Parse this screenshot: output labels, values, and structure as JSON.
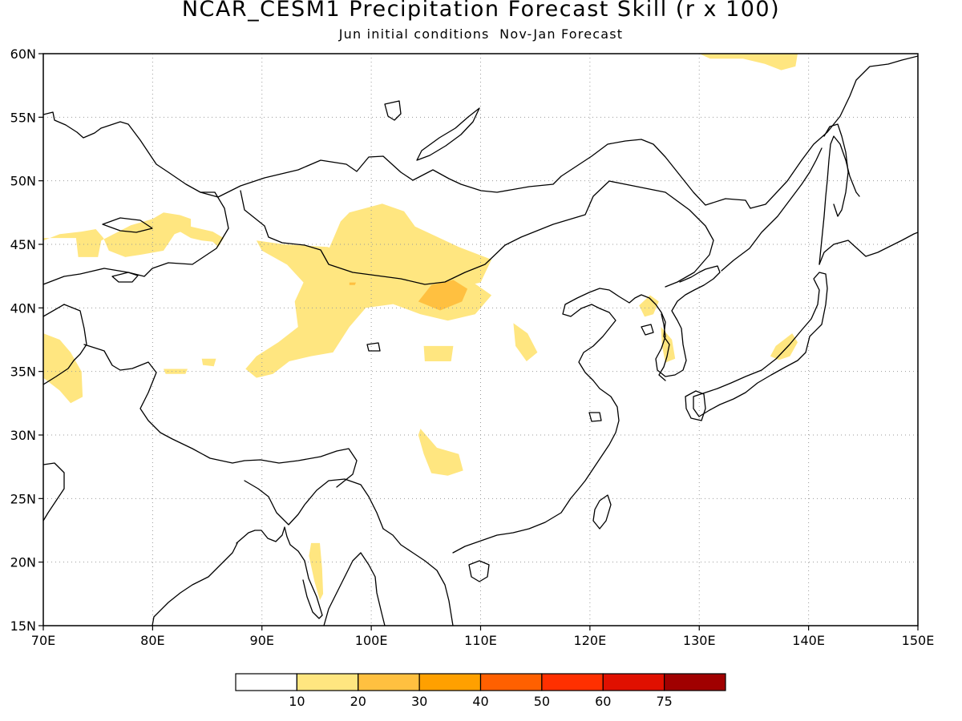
{
  "title": "NCAR_CESM1 Precipitation Forecast Skill (r x 100)",
  "subtitle": "Jun initial conditions  Nov-Jan Forecast",
  "map": {
    "lon_range": [
      70,
      150
    ],
    "lat_range": [
      15,
      60
    ],
    "lon_ticks": [
      {
        "value": 70,
        "label": "70E"
      },
      {
        "value": 80,
        "label": "80E"
      },
      {
        "value": 90,
        "label": "90E"
      },
      {
        "value": 100,
        "label": "100E"
      },
      {
        "value": 110,
        "label": "110E"
      },
      {
        "value": 120,
        "label": "120E"
      },
      {
        "value": 130,
        "label": "130E"
      },
      {
        "value": 140,
        "label": "140E"
      },
      {
        "value": 150,
        "label": "150E"
      }
    ],
    "lat_ticks": [
      {
        "value": 15,
        "label": "15N"
      },
      {
        "value": 20,
        "label": "20N"
      },
      {
        "value": 25,
        "label": "25N"
      },
      {
        "value": 30,
        "label": "30N"
      },
      {
        "value": 35,
        "label": "35N"
      },
      {
        "value": 40,
        "label": "40N"
      },
      {
        "value": 45,
        "label": "45N"
      },
      {
        "value": 50,
        "label": "50N"
      },
      {
        "value": 55,
        "label": "55N"
      },
      {
        "value": 60,
        "label": "60N"
      }
    ],
    "grid": "dotted",
    "coastline_color": "#000000",
    "skill_regions": [
      {
        "level": "10-20",
        "color": "#ffe680",
        "lonlat": [
          [
            98,
            47.5
          ],
          [
            101,
            48.2
          ],
          [
            103,
            47.6
          ],
          [
            104,
            46.4
          ],
          [
            106,
            45.6
          ],
          [
            108,
            44.8
          ],
          [
            111,
            43.8
          ],
          [
            110,
            42
          ],
          [
            108,
            41.6
          ],
          [
            106,
            41
          ],
          [
            104,
            41.8
          ],
          [
            102,
            42.4
          ],
          [
            100,
            42.6
          ],
          [
            98.5,
            43
          ],
          [
            97,
            43.6
          ],
          [
            96,
            44.4
          ],
          [
            96.6,
            45.6
          ],
          [
            97.2,
            46.8
          ]
        ]
      },
      {
        "level": "10-20",
        "color": "#ffe680",
        "lonlat": [
          [
            92,
            45
          ],
          [
            96,
            44.8
          ],
          [
            104,
            42.5
          ],
          [
            108.5,
            42.5
          ],
          [
            111,
            41
          ],
          [
            109.5,
            39.5
          ],
          [
            107,
            39
          ],
          [
            104.5,
            39.5
          ],
          [
            102,
            40.3
          ],
          [
            99.5,
            40
          ],
          [
            98,
            38.5
          ],
          [
            96.5,
            36.5
          ],
          [
            94.5,
            36.2
          ],
          [
            92.5,
            35.8
          ],
          [
            91,
            34.8
          ],
          [
            89.5,
            34.5
          ],
          [
            88.5,
            35.2
          ],
          [
            89.5,
            36.2
          ],
          [
            91.5,
            37.3
          ],
          [
            93.3,
            38.5
          ],
          [
            93,
            40.5
          ],
          [
            93.8,
            42
          ],
          [
            92.3,
            43.4
          ],
          [
            90,
            44.5
          ],
          [
            89.5,
            45.3
          ]
        ]
      },
      {
        "level": "20-30",
        "color": "#ffc040",
        "lonlat": [
          [
            104.3,
            40.5
          ],
          [
            105.5,
            41.8
          ],
          [
            107.5,
            42.2
          ],
          [
            108.8,
            41.5
          ],
          [
            108.3,
            40.5
          ],
          [
            106.3,
            39.8
          ]
        ]
      },
      {
        "level": "10-20",
        "color": "#ffe680",
        "lonlat": [
          [
            70,
            45.5
          ],
          [
            73,
            45.5
          ],
          [
            73.2,
            44
          ],
          [
            75,
            44
          ],
          [
            75.3,
            45.3
          ],
          [
            78,
            46.5
          ],
          [
            80,
            47
          ],
          [
            81,
            47.5
          ],
          [
            82.5,
            47.3
          ],
          [
            83.5,
            47
          ],
          [
            83.5,
            46.3
          ],
          [
            82,
            45.8
          ],
          [
            81,
            44.5
          ],
          [
            79,
            44.2
          ],
          [
            77.5,
            44
          ],
          [
            76,
            44.5
          ],
          [
            75.5,
            45.5
          ],
          [
            74.8,
            46.2
          ],
          [
            73.5,
            46
          ],
          [
            71.5,
            45.8
          ],
          [
            70,
            45.3
          ]
        ]
      },
      {
        "level": "10-20",
        "color": "#ffe680",
        "lonlat": [
          [
            83,
            46.5
          ],
          [
            85.5,
            46
          ],
          [
            86.5,
            45.5
          ],
          [
            86,
            44.8
          ],
          [
            85.5,
            45.2
          ],
          [
            84.5,
            45.3
          ],
          [
            83.5,
            45.5
          ],
          [
            82.5,
            46
          ]
        ]
      },
      {
        "level": "10-20",
        "color": "#ffe680",
        "lonlat": [
          [
            70,
            38
          ],
          [
            71.5,
            37.5
          ],
          [
            72.5,
            36.5
          ],
          [
            73.5,
            35
          ],
          [
            73.6,
            33
          ],
          [
            72.5,
            32.5
          ],
          [
            71.5,
            33.5
          ],
          [
            70,
            34.5
          ]
        ]
      },
      {
        "level": "10-20",
        "color": "#ffe680",
        "lonlat": [
          [
            104.5,
            30.5
          ],
          [
            106,
            29
          ],
          [
            108,
            28.5
          ],
          [
            108.4,
            27.2
          ],
          [
            107,
            26.8
          ],
          [
            105.5,
            27
          ],
          [
            104.8,
            28.5
          ],
          [
            104.3,
            30
          ]
        ]
      },
      {
        "level": "10-20",
        "color": "#ffe680",
        "lonlat": [
          [
            104.8,
            37
          ],
          [
            107.5,
            37
          ],
          [
            107.3,
            35.8
          ],
          [
            104.9,
            35.8
          ]
        ]
      },
      {
        "level": "10-20",
        "color": "#ffe680",
        "lonlat": [
          [
            84.5,
            36
          ],
          [
            85.8,
            36
          ],
          [
            85.6,
            35.4
          ],
          [
            84.6,
            35.5
          ]
        ]
      },
      {
        "level": "10-20",
        "color": "#ffe680",
        "lonlat": [
          [
            81,
            35.2
          ],
          [
            83.2,
            35.2
          ],
          [
            83,
            34.8
          ],
          [
            81.2,
            34.8
          ]
        ]
      },
      {
        "level": "10-20",
        "color": "#ffe680",
        "lonlat": [
          [
            113,
            38.8
          ],
          [
            114.3,
            38
          ],
          [
            115.2,
            36.5
          ],
          [
            114.2,
            35.8
          ],
          [
            113.2,
            37
          ]
        ]
      },
      {
        "level": "10-20",
        "color": "#ffe680",
        "lonlat": [
          [
            124.5,
            40.2
          ],
          [
            125.5,
            41
          ],
          [
            126.3,
            40.5
          ],
          [
            125.8,
            39.5
          ],
          [
            125,
            39.3
          ]
        ]
      },
      {
        "level": "10-20",
        "color": "#ffe680",
        "lonlat": [
          [
            126.5,
            38.5
          ],
          [
            127.5,
            37.5
          ],
          [
            127.8,
            36
          ],
          [
            126.9,
            35.7
          ],
          [
            126.6,
            37
          ]
        ]
      },
      {
        "level": "10-20",
        "color": "#ffe680",
        "lonlat": [
          [
            137,
            37
          ],
          [
            138.5,
            38
          ],
          [
            139,
            37.3
          ],
          [
            138.3,
            36.2
          ],
          [
            137.3,
            35.9
          ],
          [
            136.5,
            36.2
          ]
        ]
      },
      {
        "level": "10-20",
        "color": "#ffe680",
        "lonlat": [
          [
            130,
            60
          ],
          [
            139,
            60
          ],
          [
            138.8,
            59
          ],
          [
            137.5,
            58.7
          ],
          [
            136,
            59.2
          ],
          [
            134,
            59.6
          ],
          [
            131,
            59.6
          ]
        ]
      },
      {
        "level": "10-20",
        "color": "#ffe680",
        "lonlat": [
          [
            94.5,
            21.5
          ],
          [
            95.3,
            21.5
          ],
          [
            95.5,
            19.5
          ],
          [
            95.6,
            17.5
          ],
          [
            95.3,
            17
          ],
          [
            94.8,
            18.5
          ],
          [
            94.3,
            20.5
          ]
        ]
      },
      {
        "level": "10-20",
        "color": "#ffe680",
        "lonlat": [
          [
            97.9,
            42.2
          ],
          [
            98.7,
            42.2
          ],
          [
            98.6,
            41.8
          ],
          [
            97.9,
            41.8
          ]
        ]
      },
      {
        "level": "20-30",
        "color": "#ffc040",
        "lonlat": [
          [
            98,
            42
          ],
          [
            98.6,
            42
          ],
          [
            98.5,
            41.8
          ],
          [
            98,
            41.8
          ]
        ]
      }
    ]
  },
  "colorbar": {
    "segments": [
      {
        "color": "#ffffff"
      },
      {
        "color": "#ffe680"
      },
      {
        "color": "#ffc040"
      },
      {
        "color": "#ffa000"
      },
      {
        "color": "#ff6000"
      },
      {
        "color": "#ff3000"
      },
      {
        "color": "#e01000"
      },
      {
        "color": "#a00000"
      }
    ],
    "labels": [
      "10",
      "20",
      "30",
      "40",
      "50",
      "60",
      "75"
    ]
  }
}
